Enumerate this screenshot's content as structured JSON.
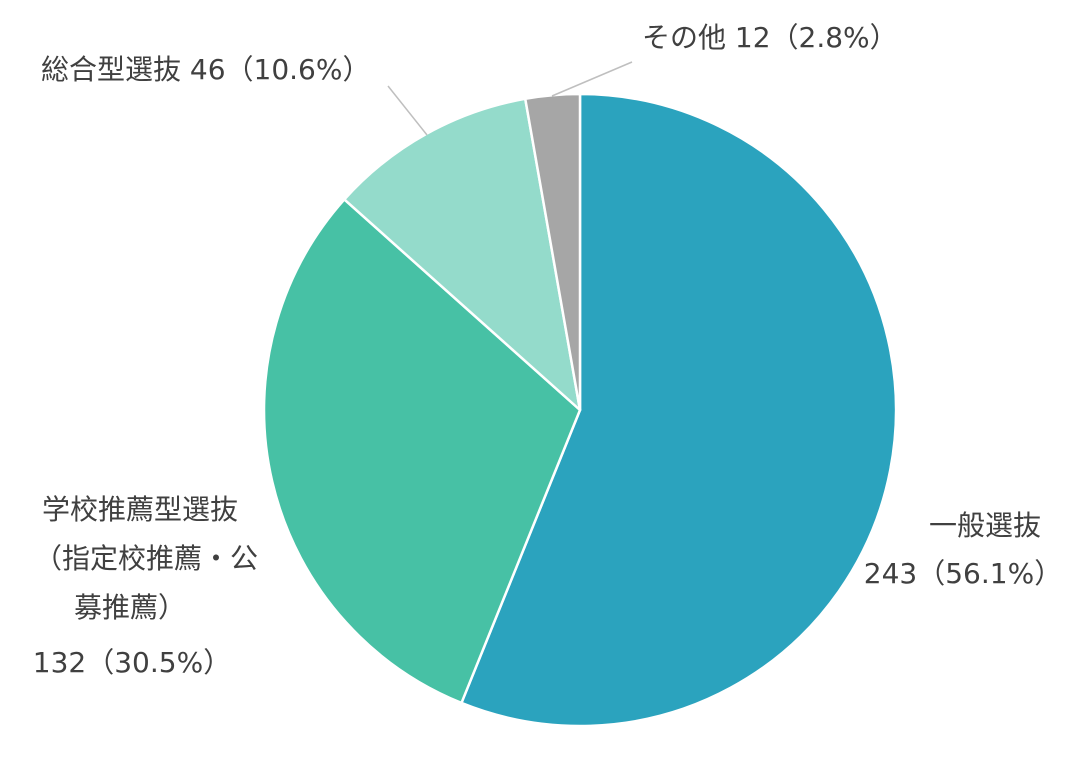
{
  "chart_data": {
    "type": "pie",
    "title": "",
    "slices": [
      {
        "label": "一般選抜",
        "value": 243,
        "percent": 56.1,
        "value_text": "243（56.1%）",
        "color": "#2ba3be"
      },
      {
        "label": "学校推薦型選抜（指定校推薦・公募推薦）",
        "label_lines": [
          "学校推薦型選抜",
          "（指定校推薦・公",
          "募推薦）"
        ],
        "value": 132,
        "percent": 30.5,
        "value_text": "132（30.5%）",
        "color": "#47c1a5"
      },
      {
        "label": "総合型選抜",
        "value": 46,
        "percent": 10.6,
        "value_text": "総合型選抜 46（10.6%）",
        "color": "#94dbcb"
      },
      {
        "label": "その他",
        "value": 12,
        "percent": 2.8,
        "value_text": "その他 12（2.8%）",
        "color": "#a6a6a6"
      }
    ]
  }
}
